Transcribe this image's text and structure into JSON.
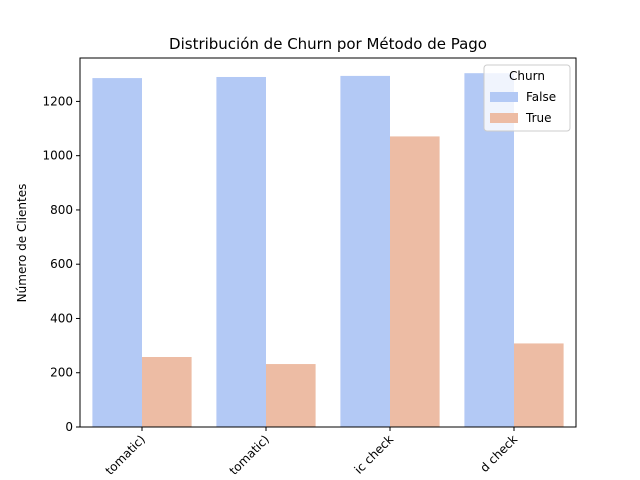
{
  "chart_data": {
    "type": "bar",
    "title": "Distribución de Churn por Método de Pago",
    "xlabel": "",
    "ylabel": "Número de Clientes",
    "categories": [
      "tomatic)",
      "tomatic)",
      "ic check",
      "d check"
    ],
    "series": [
      {
        "name": "False",
        "color": "#b3c9f5",
        "values": [
          1286,
          1290,
          1294,
          1304
        ]
      },
      {
        "name": "True",
        "color": "#edbca4",
        "values": [
          258,
          232,
          1071,
          308
        ]
      }
    ],
    "ylim": [
      0,
      1360
    ],
    "yticks": [
      0,
      200,
      400,
      600,
      800,
      1000,
      1200
    ],
    "grid": false,
    "legend": {
      "title": "Churn",
      "placement": "top-right"
    }
  }
}
